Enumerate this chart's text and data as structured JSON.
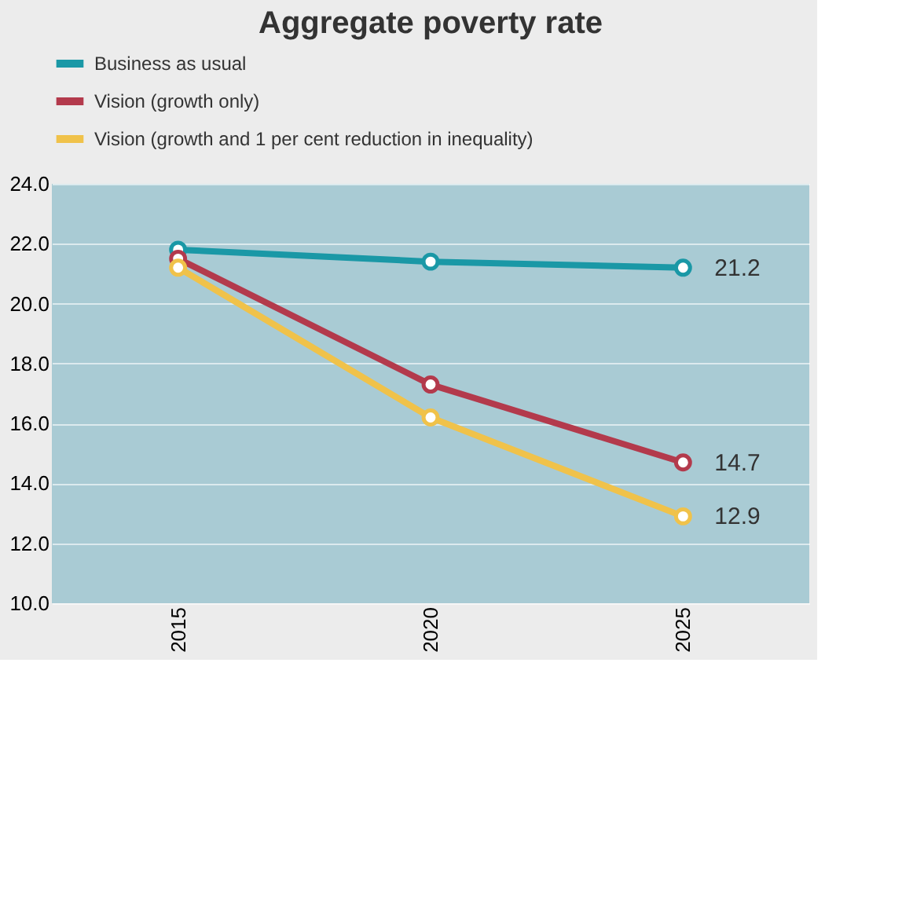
{
  "chart_data": {
    "type": "line",
    "title": "Aggregate poverty rate",
    "categories": [
      "2015",
      "2020",
      "2025"
    ],
    "series": [
      {
        "name": "Business as usual",
        "color": "#1a98a6",
        "values": [
          21.8,
          21.4,
          21.2
        ],
        "value_labels": [
          null,
          null,
          "21.2"
        ]
      },
      {
        "name": "Vision (growth only)",
        "color": "#b33a4c",
        "values": [
          21.5,
          17.3,
          14.7
        ],
        "value_labels": [
          null,
          null,
          "14.7"
        ]
      },
      {
        "name": "Vision (growth and 1 per cent reduction in inequality)",
        "color": "#f0c24a",
        "values": [
          21.2,
          16.2,
          12.9
        ],
        "value_labels": [
          null,
          null,
          "12.9"
        ]
      }
    ],
    "ylim": [
      10,
      24
    ],
    "yticks": [
      {
        "value": 10,
        "label": "10.0"
      },
      {
        "value": 12,
        "label": "12.0"
      },
      {
        "value": 14,
        "label": "14.0"
      },
      {
        "value": 16,
        "label": "16.0"
      },
      {
        "value": 18,
        "label": "18.0"
      },
      {
        "value": 20,
        "label": "20.0"
      },
      {
        "value": 22,
        "label": "22.0"
      },
      {
        "value": 24,
        "label": "24.0"
      }
    ],
    "grid": "y",
    "legend": "top",
    "marker": "circle",
    "line_style": "solid"
  }
}
